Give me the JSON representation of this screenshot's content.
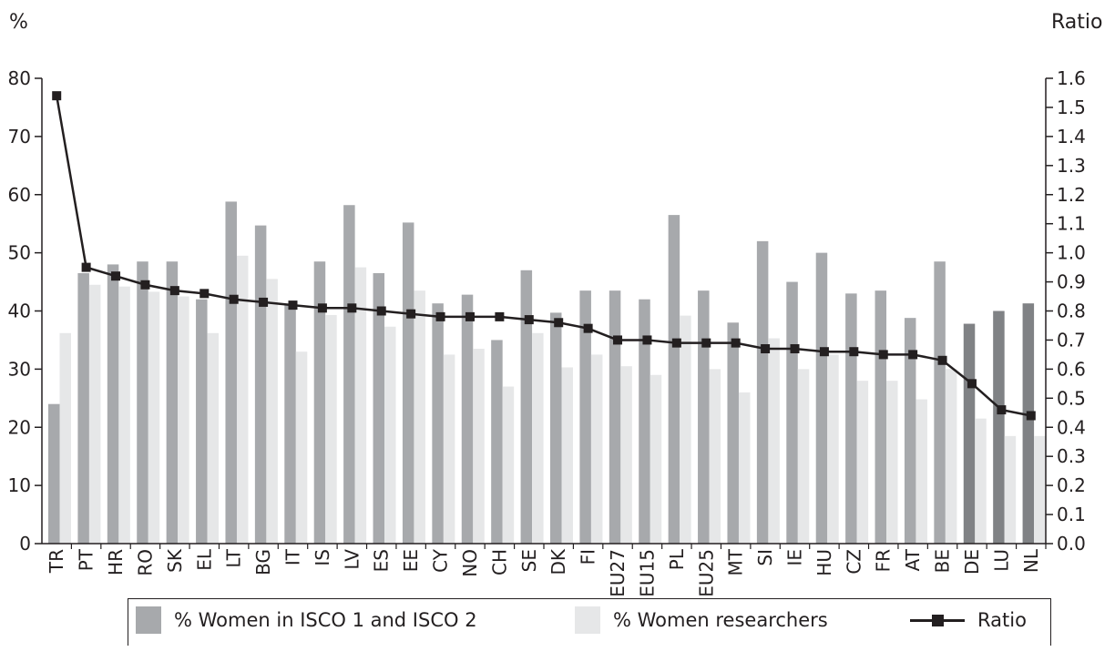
{
  "chart_data": {
    "type": "bar",
    "left_axis_label": "%",
    "right_axis_label": "Ratio",
    "ylim_left": [
      0,
      80
    ],
    "ylim_right": [
      0.0,
      1.6
    ],
    "yticks_left": [
      "0",
      "10",
      "20",
      "30",
      "40",
      "50",
      "60",
      "70",
      "80"
    ],
    "yticks_right": [
      "0.0",
      "0.1",
      "0.2",
      "0.3",
      "0.4",
      "0.5",
      "0.6",
      "0.7",
      "0.8",
      "0.9",
      "1.0",
      "1.1",
      "1.2",
      "1.3",
      "1.4",
      "1.5",
      "1.6"
    ],
    "categories": [
      "TR",
      "PT",
      "HR",
      "RO",
      "SK",
      "EL",
      "LT",
      "BG",
      "IT",
      "IS",
      "LV",
      "ES",
      "EE",
      "CY",
      "NO",
      "CH",
      "SE",
      "DK",
      "FI",
      "EU27",
      "EU15",
      "PL",
      "EU25",
      "MT",
      "SI",
      "IE",
      "HU",
      "CZ",
      "FR",
      "AT",
      "BE",
      "DE",
      "LU",
      "NL"
    ],
    "series": [
      {
        "name": "% Women in ISCO 1 and ISCO 2",
        "axis": "left",
        "kind": "bar",
        "color": "#a7a9ac",
        "highlight_color": "#808285",
        "highlight_categories": [
          "DE",
          "LU",
          "NL"
        ],
        "values": [
          24,
          46.5,
          48,
          48.5,
          48.5,
          42,
          58.8,
          54.7,
          41,
          48.5,
          58.2,
          46.5,
          55.2,
          41.3,
          42.8,
          35,
          47,
          39.7,
          43.5,
          43.5,
          42,
          56.5,
          43.5,
          38,
          52,
          45,
          50,
          43,
          43.5,
          38.8,
          48.5,
          37.8,
          40,
          41.3
        ]
      },
      {
        "name": "% Women researchers",
        "axis": "left",
        "kind": "bar",
        "color": "#e6e7e8",
        "values": [
          36.2,
          44.5,
          44.2,
          43.3,
          42.5,
          36.2,
          49.5,
          45.5,
          33,
          39.3,
          47.5,
          37.3,
          43.5,
          32.5,
          33.5,
          27,
          36.2,
          30.3,
          32.5,
          30.5,
          29,
          39.2,
          30,
          26,
          35.3,
          30,
          32.5,
          28,
          28,
          24.8,
          30,
          21.5,
          18.5,
          18.5
        ]
      },
      {
        "name": "Ratio",
        "axis": "right",
        "kind": "line",
        "color": "#231f20",
        "values": [
          1.54,
          0.95,
          0.92,
          0.89,
          0.87,
          0.86,
          0.84,
          0.83,
          0.82,
          0.81,
          0.81,
          0.8,
          0.79,
          0.78,
          0.78,
          0.78,
          0.77,
          0.76,
          0.74,
          0.7,
          0.7,
          0.69,
          0.69,
          0.69,
          0.67,
          0.67,
          0.66,
          0.66,
          0.65,
          0.65,
          0.63,
          0.55,
          0.46,
          0.44
        ]
      }
    ],
    "grid": false,
    "legend_position": "bottom"
  }
}
